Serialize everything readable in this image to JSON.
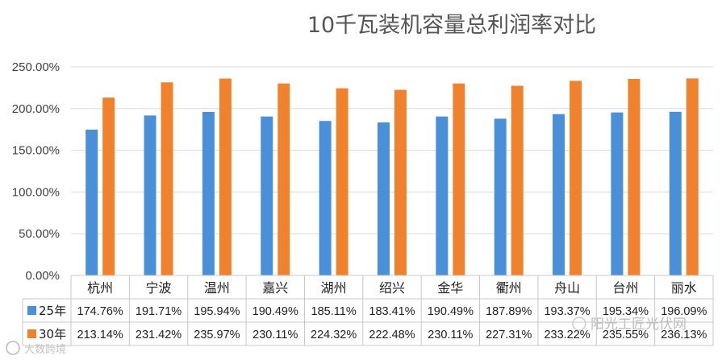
{
  "chart_data": {
    "type": "bar",
    "title": "10千瓦装机容量总利润率对比",
    "categories": [
      "杭州",
      "宁波",
      "温州",
      "嘉兴",
      "湖州",
      "绍兴",
      "金华",
      "衢州",
      "舟山",
      "台州",
      "丽水"
    ],
    "ylim": [
      0,
      250
    ],
    "yticks": [
      "0.00%",
      "50.00%",
      "100.00%",
      "150.00%",
      "200.00%",
      "250.00%"
    ],
    "grid": true,
    "legend_placement": "data-table-left",
    "data_table": true,
    "series": [
      {
        "name": "25年",
        "color": "#4a90d9",
        "values": [
          174.76,
          191.71,
          195.94,
          190.49,
          185.11,
          183.41,
          190.49,
          187.89,
          193.37,
          195.34,
          196.09
        ],
        "labels": [
          "174.76%",
          "191.71%",
          "195.94%",
          "190.49%",
          "185.11%",
          "183.41%",
          "190.49%",
          "187.89%",
          "193.37%",
          "195.34%",
          "196.09%"
        ]
      },
      {
        "name": "30年",
        "color": "#f0822d",
        "values": [
          213.14,
          231.42,
          235.97,
          230.11,
          224.32,
          222.48,
          230.11,
          227.31,
          233.22,
          235.55,
          236.13
        ],
        "labels": [
          "213.14%",
          "231.42%",
          "235.97%",
          "230.11%",
          "224.32%",
          "222.48%",
          "230.11%",
          "227.31%",
          "233.22%",
          "235.55%",
          "236.13%"
        ]
      }
    ]
  },
  "watermarks": {
    "bottom_left": "大数跨境",
    "bottom_right": "阳光工匠光伏网"
  }
}
